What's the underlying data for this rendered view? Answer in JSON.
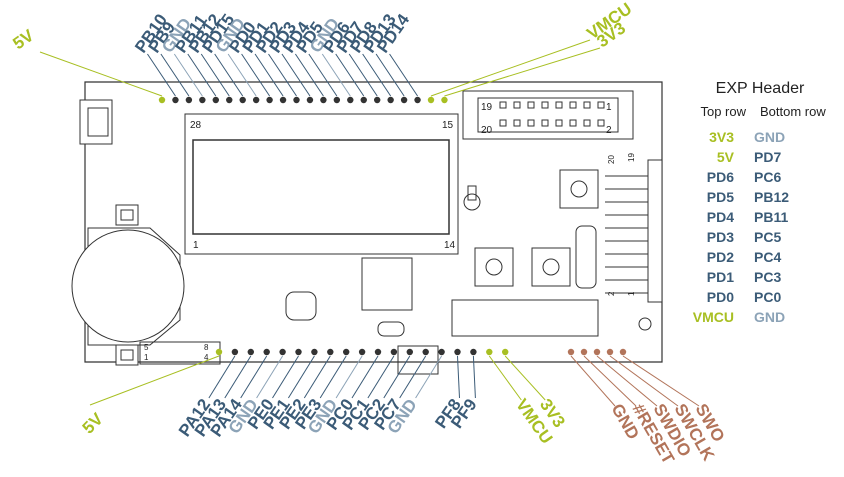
{
  "colors": {
    "green": "#a8bf22",
    "blue": "#3b5b77",
    "gray": "#8ca3b7",
    "brown": "#b2745a",
    "board": "#ffffff",
    "outline": "#333333"
  },
  "top_pins": [
    {
      "label": "5V",
      "color": "green"
    },
    {
      "label": "PB10",
      "color": "blue"
    },
    {
      "label": "PB9",
      "color": "blue"
    },
    {
      "label": "GND",
      "color": "gray"
    },
    {
      "label": "PB11",
      "color": "blue"
    },
    {
      "label": "PB12",
      "color": "blue"
    },
    {
      "label": "PD15",
      "color": "blue"
    },
    {
      "label": "GND",
      "color": "gray"
    },
    {
      "label": "PD0",
      "color": "blue"
    },
    {
      "label": "PD1",
      "color": "blue"
    },
    {
      "label": "PD2",
      "color": "blue"
    },
    {
      "label": "PD3",
      "color": "blue"
    },
    {
      "label": "PD4",
      "color": "blue"
    },
    {
      "label": "PD5",
      "color": "blue"
    },
    {
      "label": "GND",
      "color": "gray"
    },
    {
      "label": "PD6",
      "color": "blue"
    },
    {
      "label": "PD7",
      "color": "blue"
    },
    {
      "label": "PD8",
      "color": "blue"
    },
    {
      "label": "PD13",
      "color": "blue"
    },
    {
      "label": "PD14",
      "color": "blue"
    },
    {
      "label": "VMCU",
      "color": "green"
    },
    {
      "label": "3V3",
      "color": "green"
    }
  ],
  "bottom_pins": [
    {
      "label": "5V",
      "color": "green"
    },
    {
      "label": "PA12",
      "color": "blue"
    },
    {
      "label": "PA13",
      "color": "blue"
    },
    {
      "label": "PA14",
      "color": "blue"
    },
    {
      "label": "GND",
      "color": "gray"
    },
    {
      "label": "PE0",
      "color": "blue"
    },
    {
      "label": "PE1",
      "color": "blue"
    },
    {
      "label": "PE2",
      "color": "blue"
    },
    {
      "label": "PE3",
      "color": "blue"
    },
    {
      "label": "GND",
      "color": "gray"
    },
    {
      "label": "PC0",
      "color": "blue"
    },
    {
      "label": "PC1",
      "color": "blue"
    },
    {
      "label": "PC2",
      "color": "blue"
    },
    {
      "label": "PC7",
      "color": "blue"
    },
    {
      "label": "GND",
      "color": "gray"
    },
    {
      "label": "PF8",
      "color": "blue"
    },
    {
      "label": "PF9",
      "color": "blue"
    },
    {
      "label": "VMCU",
      "color": "green"
    },
    {
      "label": "3V3",
      "color": "green"
    }
  ],
  "debug_pins": [
    {
      "label": "GND",
      "color": "brown"
    },
    {
      "label": "#RESET",
      "color": "brown"
    },
    {
      "label": "SWDIO",
      "color": "brown"
    },
    {
      "label": "SWCLK",
      "color": "brown"
    },
    {
      "label": "SWO",
      "color": "brown"
    }
  ],
  "exp_header": {
    "title": "EXP Header",
    "top_row_label": "Top row",
    "bottom_row_label": "Bottom row",
    "rows": [
      {
        "top": "3V3",
        "top_color": "green",
        "bottom": "GND",
        "bottom_color": "gray"
      },
      {
        "top": "5V",
        "top_color": "green",
        "bottom": "PD7",
        "bottom_color": "blue"
      },
      {
        "top": "PD6",
        "top_color": "blue",
        "bottom": "PC6",
        "bottom_color": "blue"
      },
      {
        "top": "PD5",
        "top_color": "blue",
        "bottom": "PB12",
        "bottom_color": "blue"
      },
      {
        "top": "PD4",
        "top_color": "blue",
        "bottom": "PB11",
        "bottom_color": "blue"
      },
      {
        "top": "PD3",
        "top_color": "blue",
        "bottom": "PC5",
        "bottom_color": "blue"
      },
      {
        "top": "PD2",
        "top_color": "blue",
        "bottom": "PC4",
        "bottom_color": "blue"
      },
      {
        "top": "PD1",
        "top_color": "blue",
        "bottom": "PC3",
        "bottom_color": "blue"
      },
      {
        "top": "PD0",
        "top_color": "blue",
        "bottom": "PC0",
        "bottom_color": "blue"
      },
      {
        "top": "VMCU",
        "top_color": "green",
        "bottom": "GND",
        "bottom_color": "gray"
      }
    ]
  },
  "board_text": {
    "lcd_28": "28",
    "lcd_15": "15",
    "lcd_1": "1",
    "lcd_14": "14",
    "hdr_19": "19",
    "hdr_1": "1",
    "hdr_20": "20",
    "hdr_2": "2",
    "side_20": "20",
    "side_19": "19",
    "side_2": "2",
    "side_1": "1",
    "jmp_5": "5",
    "jmp_8": "8",
    "jmp_1": "1",
    "jmp_4": "4"
  }
}
